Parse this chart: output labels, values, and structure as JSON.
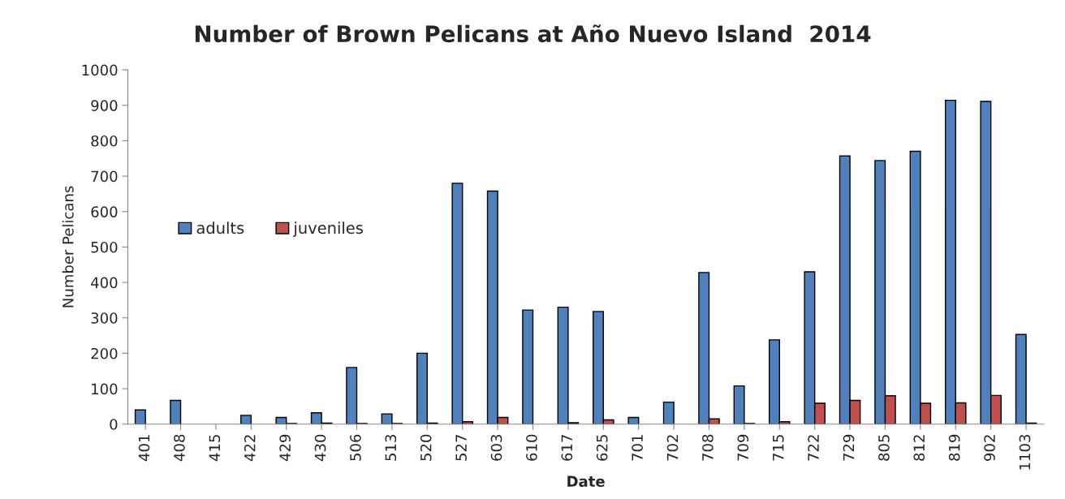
{
  "chart_data": {
    "type": "bar",
    "title": "Number of Brown Pelicans at Año Nuevo Island  2014",
    "xlabel": "Date",
    "ylabel": "Number Pelicans",
    "categories": [
      "401",
      "408",
      "415",
      "422",
      "429",
      "430",
      "506",
      "513",
      "520",
      "527",
      "603",
      "610",
      "617",
      "625",
      "701",
      "702",
      "708",
      "709",
      "715",
      "722",
      "729",
      "805",
      "812",
      "819",
      "902",
      "1103"
    ],
    "series": [
      {
        "name": "adults",
        "color": "#4f81bd",
        "values": [
          40,
          67,
          0,
          25,
          19,
          32,
          160,
          29,
          200,
          680,
          658,
          322,
          330,
          318,
          19,
          62,
          428,
          108,
          238,
          430,
          757,
          744,
          770,
          914,
          911,
          253
        ]
      },
      {
        "name": "juveniles",
        "color": "#c0504d",
        "values": [
          0,
          0,
          0,
          0,
          2,
          3,
          2,
          2,
          3,
          7,
          19,
          0,
          4,
          12,
          0,
          0,
          15,
          2,
          7,
          59,
          67,
          80,
          59,
          60,
          81,
          3
        ]
      }
    ],
    "ylim": [
      0,
      1000
    ],
    "yticks": [
      0,
      100,
      200,
      300,
      400,
      500,
      600,
      700,
      800,
      900,
      1000
    ],
    "grid": false,
    "legend": "left"
  }
}
